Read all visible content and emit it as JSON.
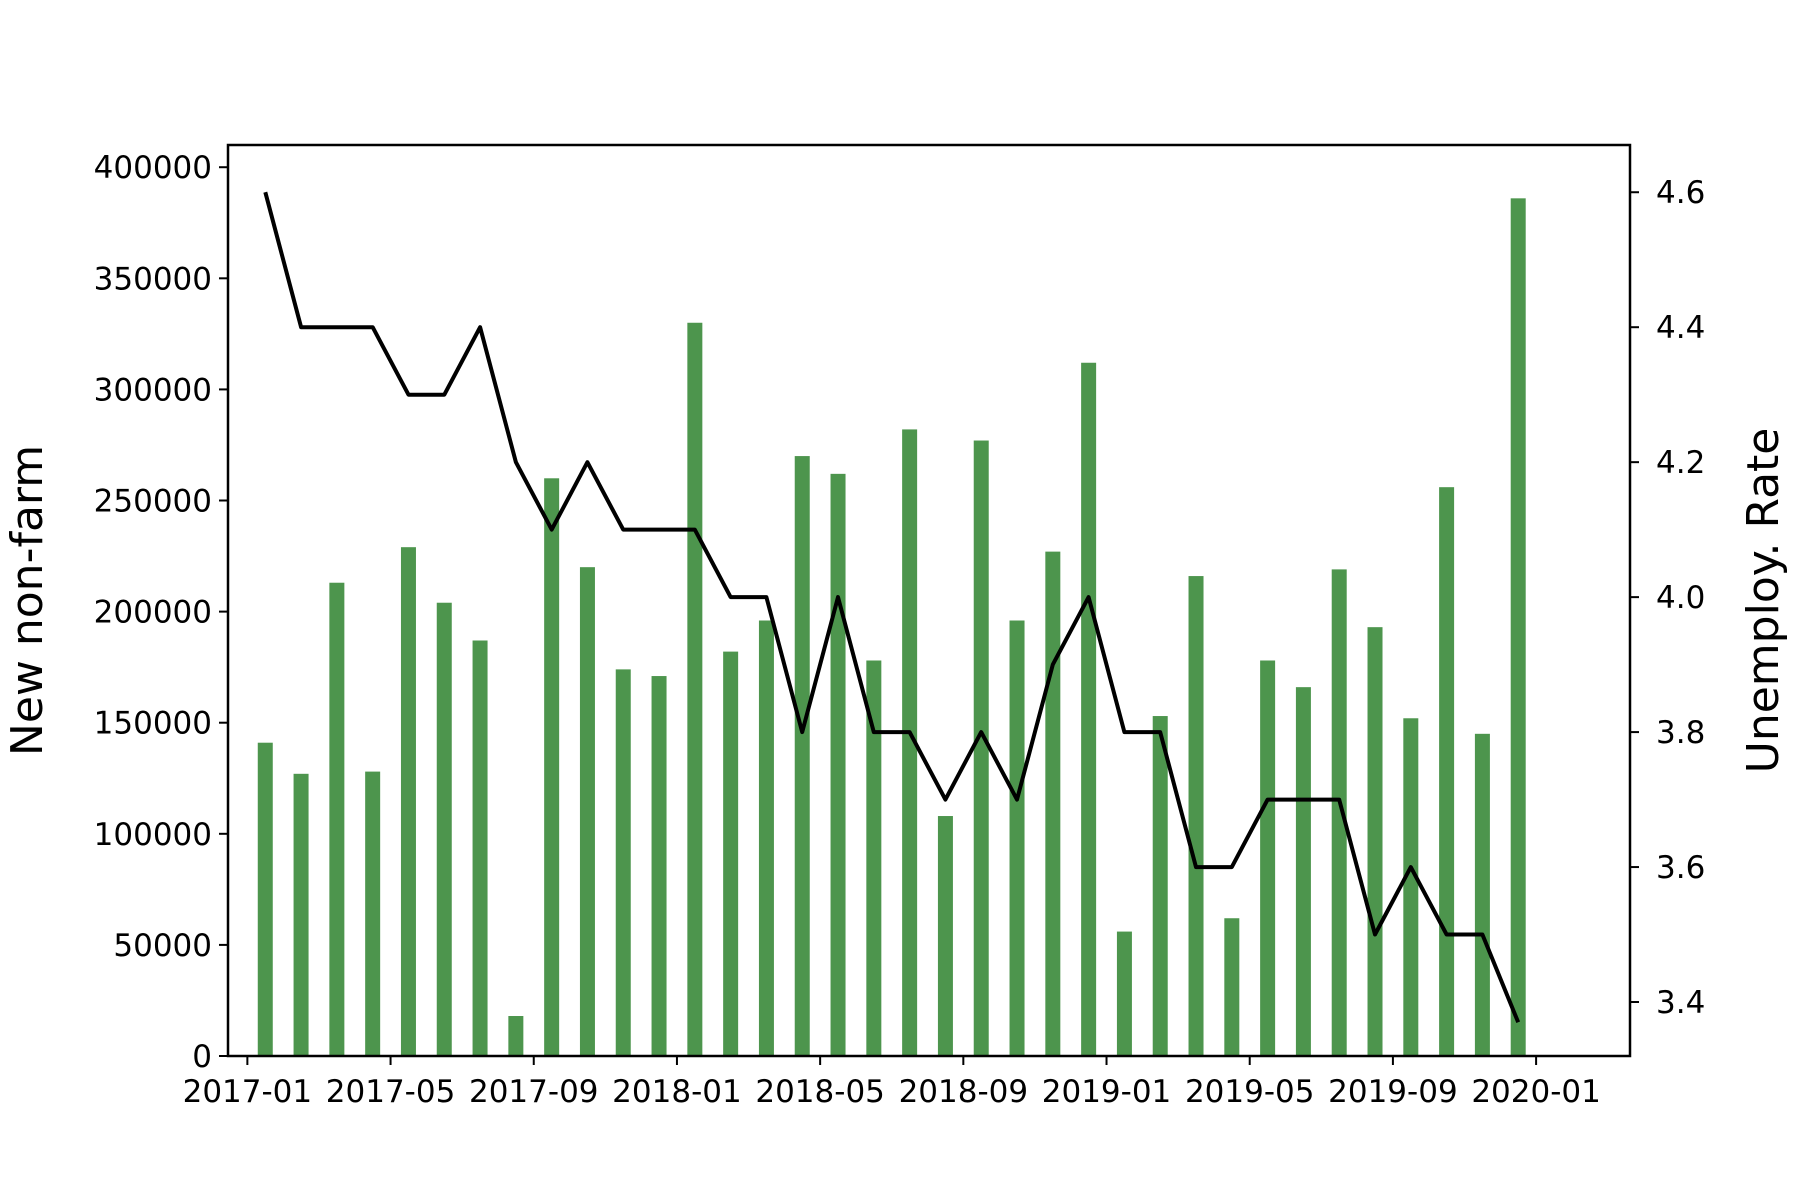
{
  "chart_data": {
    "type": "bar",
    "combined_with": "line",
    "grid": false,
    "ylabel": "New non-farm",
    "y2label": "Unemploy. Rate",
    "ylim": [
      0,
      410000
    ],
    "y2lim": [
      3.32,
      4.67
    ],
    "xlim": [
      "2016-12-15",
      "2020-03-20"
    ],
    "yticks": [
      0,
      50000,
      100000,
      150000,
      200000,
      250000,
      300000,
      350000,
      400000
    ],
    "y2ticks": [
      3.4,
      3.6,
      3.8,
      4.0,
      4.2,
      4.4,
      4.6
    ],
    "y2tick_labels": [
      "3.4",
      "3.6",
      "3.8",
      "4.0",
      "4.2",
      "4.4",
      "4.6"
    ],
    "xticks": [
      "2017-01",
      "2017-05",
      "2017-09",
      "2018-01",
      "2018-05",
      "2018-09",
      "2019-01",
      "2019-05",
      "2019-09",
      "2020-01"
    ],
    "x": [
      "2017-01",
      "2017-02",
      "2017-03",
      "2017-04",
      "2017-05",
      "2017-06",
      "2017-07",
      "2017-08",
      "2017-09",
      "2017-10",
      "2017-11",
      "2017-12",
      "2018-01",
      "2018-02",
      "2018-03",
      "2018-04",
      "2018-05",
      "2018-06",
      "2018-07",
      "2018-08",
      "2018-09",
      "2018-10",
      "2018-11",
      "2018-12",
      "2019-01",
      "2019-02",
      "2019-03",
      "2019-04",
      "2019-05",
      "2019-06",
      "2019-07",
      "2019-08",
      "2019-09",
      "2019-10",
      "2019-11",
      "2019-12",
      "2020-01"
    ],
    "series": [
      {
        "type": "bar",
        "axis": "left",
        "color": "#3a8a3a",
        "values": [
          141000,
          127000,
          213000,
          128000,
          229000,
          204000,
          187000,
          18000,
          260000,
          220000,
          174000,
          171000,
          330000,
          182000,
          196000,
          270000,
          262000,
          178000,
          282000,
          108000,
          277000,
          196000,
          227000,
          312000,
          56000,
          153000,
          216000,
          62000,
          178000,
          166000,
          219000,
          193000,
          152000,
          256000,
          145000,
          386000,
          0
        ]
      },
      {
        "type": "line",
        "axis": "right",
        "color": "#000000",
        "values": [
          4.6,
          4.4,
          4.4,
          4.4,
          4.3,
          4.3,
          4.4,
          4.2,
          4.1,
          4.2,
          4.1,
          4.1,
          4.1,
          4.0,
          4.0,
          3.8,
          4.0,
          3.8,
          3.8,
          3.7,
          3.8,
          3.7,
          3.9,
          4.0,
          3.8,
          3.8,
          3.6,
          3.6,
          3.7,
          3.7,
          3.7,
          3.5,
          3.6,
          3.5,
          3.5,
          3.37,
          null
        ]
      }
    ]
  }
}
